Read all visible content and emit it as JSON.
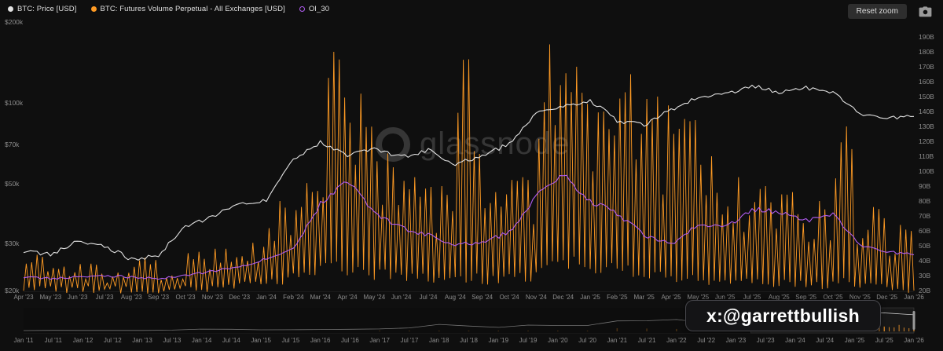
{
  "header": {
    "legend": [
      {
        "label": "BTC: Price [USD]",
        "color": "#e2e2e2",
        "marker": "filled"
      },
      {
        "label": "BTC: Futures Volume Perpetual - All Exchanges [USD]",
        "color": "#ff9b24",
        "marker": "filled"
      },
      {
        "label": "OI_30",
        "color": "#b05cf0",
        "marker": "hollow"
      }
    ],
    "reset_zoom_label": "Reset zoom"
  },
  "watermark": {
    "text": "glassnode"
  },
  "overlay_badge": {
    "text": "x:@garrettbullish"
  },
  "colors": {
    "background": "#0f0f0f",
    "axis_text": "#8d8d8d",
    "button_bg": "#2e2e2e",
    "navigator_line": "#c9c9c9"
  },
  "chart_data": {
    "type": "line",
    "title": "",
    "legend_position": "top-left",
    "grid": false,
    "x_categories": [
      "Apr '23",
      "May '23",
      "Jun '23",
      "Jul '23",
      "Aug '23",
      "Sep '23",
      "Oct '23",
      "Nov '23",
      "Dec '23",
      "Jan '24",
      "Feb '24",
      "Mar '24",
      "Apr '24",
      "May '24",
      "Jun '24",
      "Jul '24",
      "Aug '24",
      "Sep '24",
      "Oct '24",
      "Nov '24",
      "Dec '24",
      "Jan '25",
      "Feb '25",
      "Mar '25",
      "Apr '25",
      "May '25",
      "Jun '25",
      "Jul '25",
      "Aug '25",
      "Sep '25",
      "Oct '25",
      "Nov '25",
      "Dec '25",
      "Jan '26"
    ],
    "left_axis": {
      "scale": "log",
      "unit": "USD",
      "labels": [
        "$200k",
        "$100k",
        "$70k",
        "$50k",
        "$30k",
        "$20k"
      ],
      "values_k": [
        200,
        100,
        70,
        50,
        30,
        20
      ],
      "range_k": [
        20,
        200
      ]
    },
    "right_axis": {
      "scale": "linear",
      "unit": "B USD",
      "labels": [
        "190B",
        "180B",
        "170B",
        "160B",
        "150B",
        "140B",
        "130B",
        "120B",
        "110B",
        "100B",
        "90B",
        "80B",
        "70B",
        "60B",
        "50B",
        "40B",
        "30B",
        "20B"
      ],
      "values_b": [
        190,
        180,
        170,
        160,
        150,
        140,
        130,
        120,
        110,
        100,
        90,
        80,
        70,
        60,
        50,
        40,
        30,
        20
      ],
      "range_b": [
        20,
        200
      ]
    },
    "series": [
      {
        "name": "BTC: Price [USD]",
        "axis": "left",
        "color": "#e2e2e2",
        "representation": "monthly_values",
        "monthly_usd_k": [
          28.0,
          27.2,
          30.4,
          29.3,
          26.1,
          27.0,
          34.5,
          37.7,
          42.3,
          43.0,
          61.5,
          71.2,
          63.8,
          67.5,
          62.7,
          66.5,
          59.2,
          63.3,
          70.2,
          91.0,
          96.4,
          102.0,
          86.0,
          82.5,
          94.2,
          104.6,
          107.2,
          116.5,
          108.5,
          114.0,
          110.0,
          91.5,
          87.8,
          89.0
        ]
      },
      {
        "name": "BTC: Futures Volume Perpetual - All Exchanges [USD]",
        "axis": "right",
        "color": "#ff9b24",
        "representation": "monthly_envelope_of_daily_spikes",
        "monthly_low_b": [
          21,
          20,
          20,
          20,
          19,
          19,
          20,
          22,
          24,
          26,
          28,
          35,
          32,
          30,
          28,
          26,
          28,
          26,
          28,
          35,
          38,
          35,
          32,
          30,
          28,
          26,
          25,
          24,
          24,
          23,
          25,
          22,
          20,
          20
        ],
        "monthly_high_b": [
          44,
          36,
          38,
          32,
          42,
          30,
          46,
          48,
          52,
          80,
          92,
          180,
          152,
          112,
          96,
          90,
          175,
          86,
          96,
          185,
          170,
          140,
          165,
          150,
          135,
          110,
          96,
          90,
          86,
          80,
          130,
          76,
          64,
          50
        ]
      },
      {
        "name": "OI_30",
        "axis": "right",
        "color": "#b05cf0",
        "representation": "monthly_values",
        "monthly_b": [
          29,
          28,
          29,
          30,
          29,
          28,
          30,
          33,
          36,
          41,
          48,
          78,
          94,
          72,
          62,
          57,
          51,
          52,
          59,
          83,
          97,
          80,
          72,
          57,
          51,
          64,
          62,
          75,
          72,
          67,
          72,
          51,
          46,
          44
        ]
      }
    ],
    "navigator": {
      "x_categories": [
        "Jan '11",
        "Jul '11",
        "Jan '12",
        "Jul '12",
        "Jan '13",
        "Jul '13",
        "Jan '14",
        "Jul '14",
        "Jan '15",
        "Jul '15",
        "Jan '16",
        "Jul '16",
        "Jan '17",
        "Jul '17",
        "Jan '18",
        "Jul '18",
        "Jan '19",
        "Jul '19",
        "Jan '20",
        "Jul '20",
        "Jan '21",
        "Jul '21",
        "Jan '22",
        "Jul '22",
        "Jan '23",
        "Jul '23",
        "Jan '24",
        "Jul '24",
        "Jan '25",
        "Jul '25",
        "Jan '26"
      ],
      "price_usd_k": [
        0.0003,
        0.014,
        0.006,
        0.009,
        0.013,
        0.09,
        0.8,
        0.62,
        0.22,
        0.28,
        0.43,
        0.66,
        0.97,
        2.5,
        13.6,
        7.4,
        3.7,
        10.6,
        9.3,
        9.1,
        33,
        34,
        43,
        21,
        17,
        30,
        43,
        65,
        100,
        110,
        88
      ],
      "volume_b": [
        0,
        0,
        0,
        0,
        0,
        0,
        0.2,
        0.2,
        0.1,
        0.1,
        0.2,
        0.3,
        0.8,
        2,
        8,
        5,
        3,
        7,
        11,
        14,
        58,
        52,
        44,
        30,
        24,
        30,
        58,
        78,
        115,
        90,
        45
      ],
      "selection": {
        "from": "Apr '23",
        "to": "Jan '26"
      }
    }
  }
}
